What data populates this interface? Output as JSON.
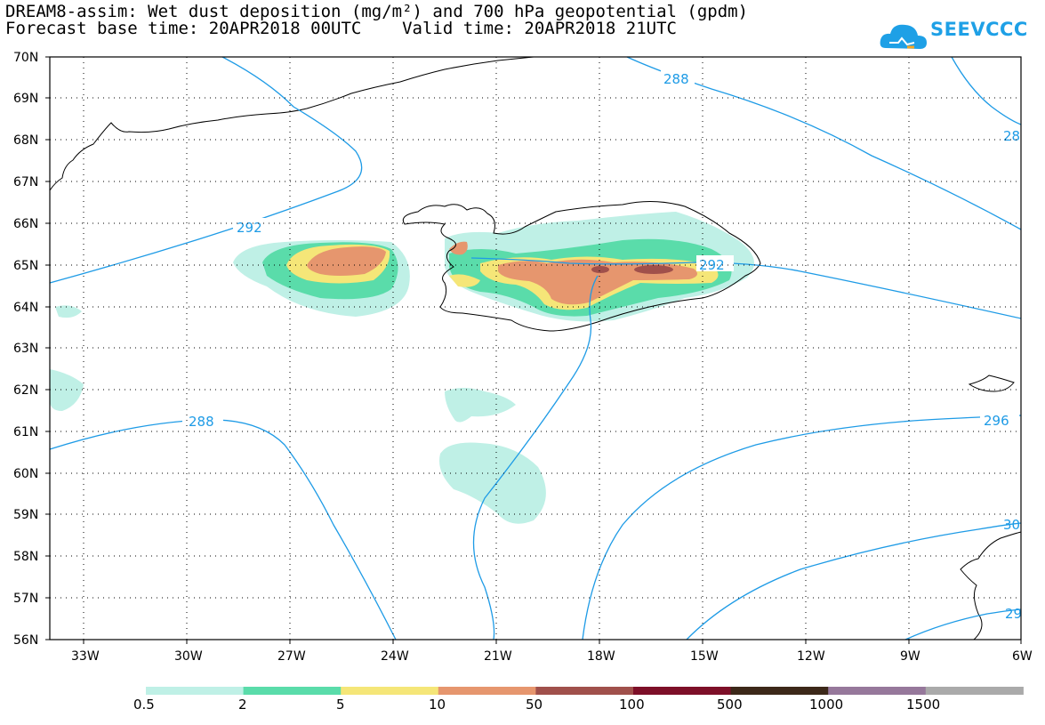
{
  "title": {
    "line1": "DREAM8-assim: Wet dust deposition (mg/m²) and 700 hPa geopotential (gpdm)",
    "line2": "Forecast base time: 20APR2018 00UTC    Valid time: 20APR2018 21UTC"
  },
  "logo": {
    "text": "SEEVCCC",
    "icon": "cloud-icon"
  },
  "axes": {
    "lat_labels": [
      "70N",
      "69N",
      "68N",
      "67N",
      "66N",
      "65N",
      "64N",
      "63N",
      "62N",
      "61N",
      "60N",
      "59N",
      "58N",
      "57N",
      "56N"
    ],
    "lon_labels": [
      "33W",
      "30W",
      "27W",
      "24W",
      "21W",
      "18W",
      "15W",
      "12W",
      "9W",
      "6W"
    ]
  },
  "contours": {
    "labels": [
      "288",
      "292",
      "288",
      "292",
      "296",
      "28",
      "30",
      "29"
    ]
  },
  "legend": {
    "labels": [
      "0.5",
      "2",
      "5",
      "10",
      "50",
      "100",
      "500",
      "1000",
      "1500"
    ],
    "colors": [
      "#bff0e6",
      "#5adcaa",
      "#f5e678",
      "#e6966e",
      "#a0504b",
      "#7d0f28",
      "#3c2819",
      "#96789b",
      "#aaaaaa"
    ]
  },
  "colors": {
    "contour": "#1e9be6",
    "coast": "#000000",
    "grid": "#000000"
  }
}
